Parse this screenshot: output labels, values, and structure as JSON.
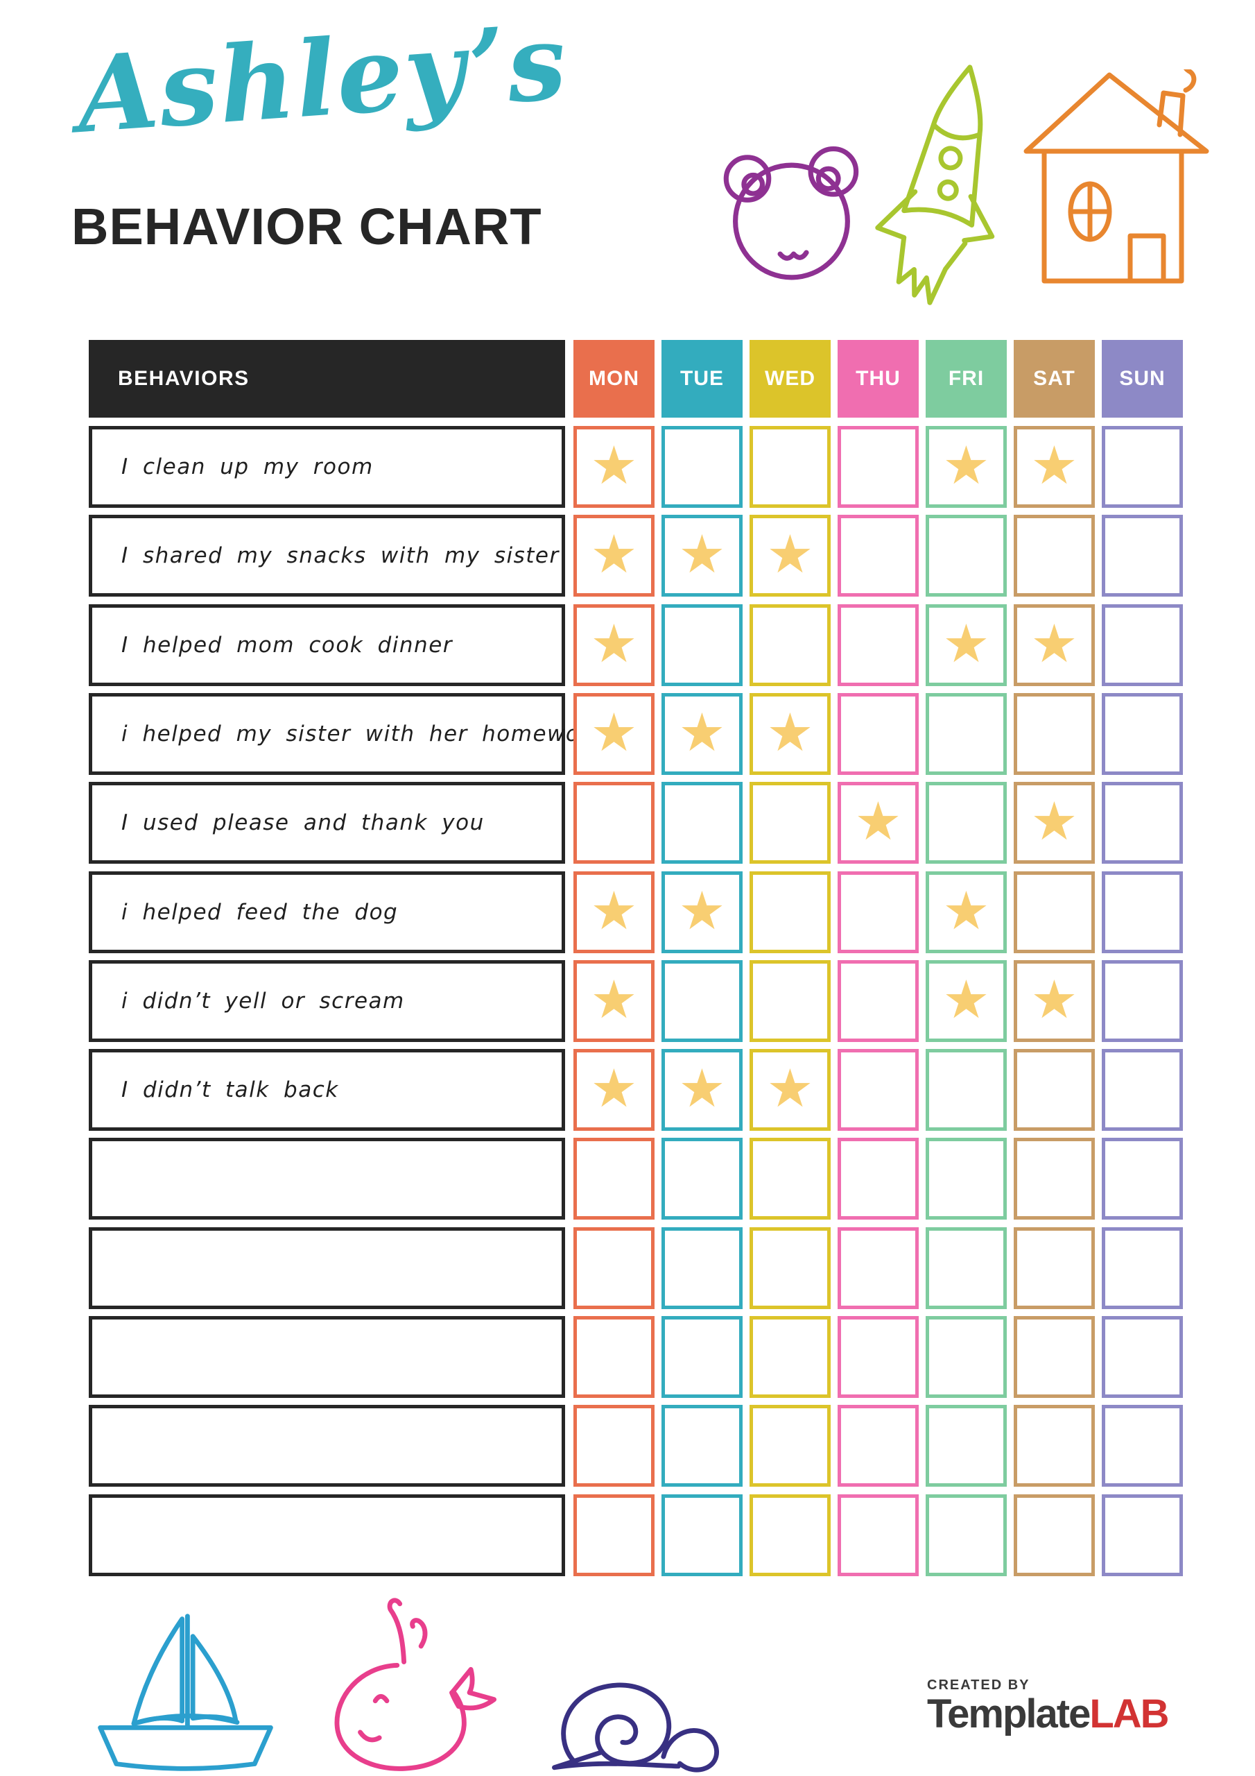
{
  "title": {
    "name": "Ashley’s",
    "heading": "BEHAVIOR CHART"
  },
  "table": {
    "behaviors_header": "BEHAVIORS",
    "star_glyph": "★",
    "days": [
      {
        "label": "MON",
        "color": "#E96F4D"
      },
      {
        "label": "TUE",
        "color": "#33ACBE"
      },
      {
        "label": "WED",
        "color": "#DCC42A"
      },
      {
        "label": "THU",
        "color": "#F06EB0"
      },
      {
        "label": "FRI",
        "color": "#7ECC9F"
      },
      {
        "label": "SAT",
        "color": "#C89C66"
      },
      {
        "label": "SUN",
        "color": "#8D89C6"
      }
    ],
    "rows": [
      {
        "behavior": "I clean up my room",
        "stars": [
          1,
          0,
          0,
          0,
          1,
          1,
          0
        ]
      },
      {
        "behavior": "I shared my snacks with my sister",
        "stars": [
          1,
          1,
          1,
          0,
          0,
          0,
          0
        ]
      },
      {
        "behavior": "I helped mom cook dinner",
        "stars": [
          1,
          0,
          0,
          0,
          1,
          1,
          0
        ]
      },
      {
        "behavior": "i helped my sister with her homework",
        "stars": [
          1,
          1,
          1,
          0,
          0,
          0,
          0
        ]
      },
      {
        "behavior": "I used please and thank you",
        "stars": [
          0,
          0,
          0,
          1,
          0,
          1,
          0
        ]
      },
      {
        "behavior": "i helped feed the dog",
        "stars": [
          1,
          1,
          0,
          0,
          1,
          0,
          0
        ]
      },
      {
        "behavior": "i didn’t yell or scream",
        "stars": [
          1,
          0,
          0,
          0,
          1,
          1,
          0
        ]
      },
      {
        "behavior": "I didn’t talk back",
        "stars": [
          1,
          1,
          1,
          0,
          0,
          0,
          0
        ]
      },
      {
        "behavior": "",
        "stars": [
          0,
          0,
          0,
          0,
          0,
          0,
          0
        ]
      },
      {
        "behavior": "",
        "stars": [
          0,
          0,
          0,
          0,
          0,
          0,
          0
        ]
      },
      {
        "behavior": "",
        "stars": [
          0,
          0,
          0,
          0,
          0,
          0,
          0
        ]
      },
      {
        "behavior": "",
        "stars": [
          0,
          0,
          0,
          0,
          0,
          0,
          0
        ]
      },
      {
        "behavior": "",
        "stars": [
          0,
          0,
          0,
          0,
          0,
          0,
          0
        ]
      }
    ]
  },
  "doodles": {
    "top": [
      "bear-icon",
      "rocket-icon",
      "house-icon"
    ],
    "bottom": [
      "sailboat-icon",
      "whale-icon",
      "snail-icon"
    ]
  },
  "footer": {
    "created_by": "CREATED BY",
    "brand_primary": "Template",
    "brand_accent": "LAB"
  },
  "colors": {
    "ink": "#262626",
    "title_script": "#35AEBE",
    "star": "#F8CE72",
    "behavior_text": "#1F1F1F",
    "logo_gray": "#3A3A3A",
    "logo_red": "#D23333",
    "bear": "#8E3192",
    "rocket": "#A8C62F",
    "house": "#E8862F",
    "sailboat": "#2B9FCE",
    "whale": "#E83E8C",
    "snail": "#383082"
  }
}
